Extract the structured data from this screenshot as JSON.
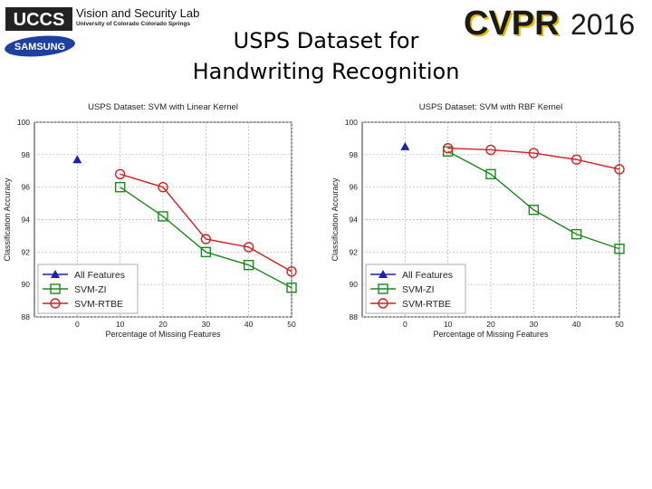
{
  "header": {
    "logo_text": "UCCS",
    "lab_name": "Vision and Security Lab",
    "lab_affiliation": "University of Colorado Colorado Springs",
    "sponsor_logo": "SAMSUNG",
    "conference_logo": "CVPR",
    "conference_year": "2016"
  },
  "slide": {
    "title_line1": "USPS Dataset for",
    "title_line2": "Handwriting Recognition"
  },
  "colors": {
    "all_features": "#1f1fb4",
    "svm_zi": "#1a8a1a",
    "svm_rtbe": "#d42020",
    "grid": "#b0b0b0"
  },
  "chart_data": [
    {
      "type": "line",
      "title": "USPS Dataset: SVM with Linear Kernel",
      "xlabel": "Percentage of Missing Features",
      "ylabel": "Classification Accuracy",
      "xlim": [
        -10,
        50
      ],
      "ylim": [
        88,
        100
      ],
      "xticks": [
        0,
        10,
        20,
        30,
        40,
        50
      ],
      "yticks": [
        88,
        90,
        92,
        94,
        96,
        98,
        100
      ],
      "grid": true,
      "legend_position": "bottom-left",
      "series": [
        {
          "name": "All Features",
          "marker": "triangle",
          "x": [
            0
          ],
          "y": [
            97.7
          ]
        },
        {
          "name": "SVM-ZI",
          "marker": "square",
          "x": [
            10,
            20,
            30,
            40,
            50
          ],
          "y": [
            96.0,
            94.2,
            92.0,
            91.2,
            89.8
          ]
        },
        {
          "name": "SVM-RTBE",
          "marker": "circle",
          "x": [
            10,
            20,
            30,
            40,
            50
          ],
          "y": [
            96.8,
            96.0,
            92.8,
            92.3,
            90.8
          ]
        }
      ]
    },
    {
      "type": "line",
      "title": "USPS Dataset: SVM with RBF Kernel",
      "xlabel": "Percentage of Missing Features",
      "ylabel": "Classification Accuracy",
      "xlim": [
        -10,
        50
      ],
      "ylim": [
        88,
        100
      ],
      "xticks": [
        0,
        10,
        20,
        30,
        40,
        50
      ],
      "yticks": [
        88,
        90,
        92,
        94,
        96,
        98,
        100
      ],
      "grid": true,
      "legend_position": "bottom-left",
      "series": [
        {
          "name": "All Features",
          "marker": "triangle",
          "x": [
            0
          ],
          "y": [
            98.5
          ]
        },
        {
          "name": "SVM-ZI",
          "marker": "square",
          "x": [
            10,
            20,
            30,
            40,
            50
          ],
          "y": [
            98.2,
            96.8,
            94.6,
            93.1,
            92.2
          ]
        },
        {
          "name": "SVM-RTBE",
          "marker": "circle",
          "x": [
            10,
            20,
            30,
            40,
            50
          ],
          "y": [
            98.4,
            98.3,
            98.1,
            97.7,
            97.1
          ]
        }
      ]
    }
  ]
}
